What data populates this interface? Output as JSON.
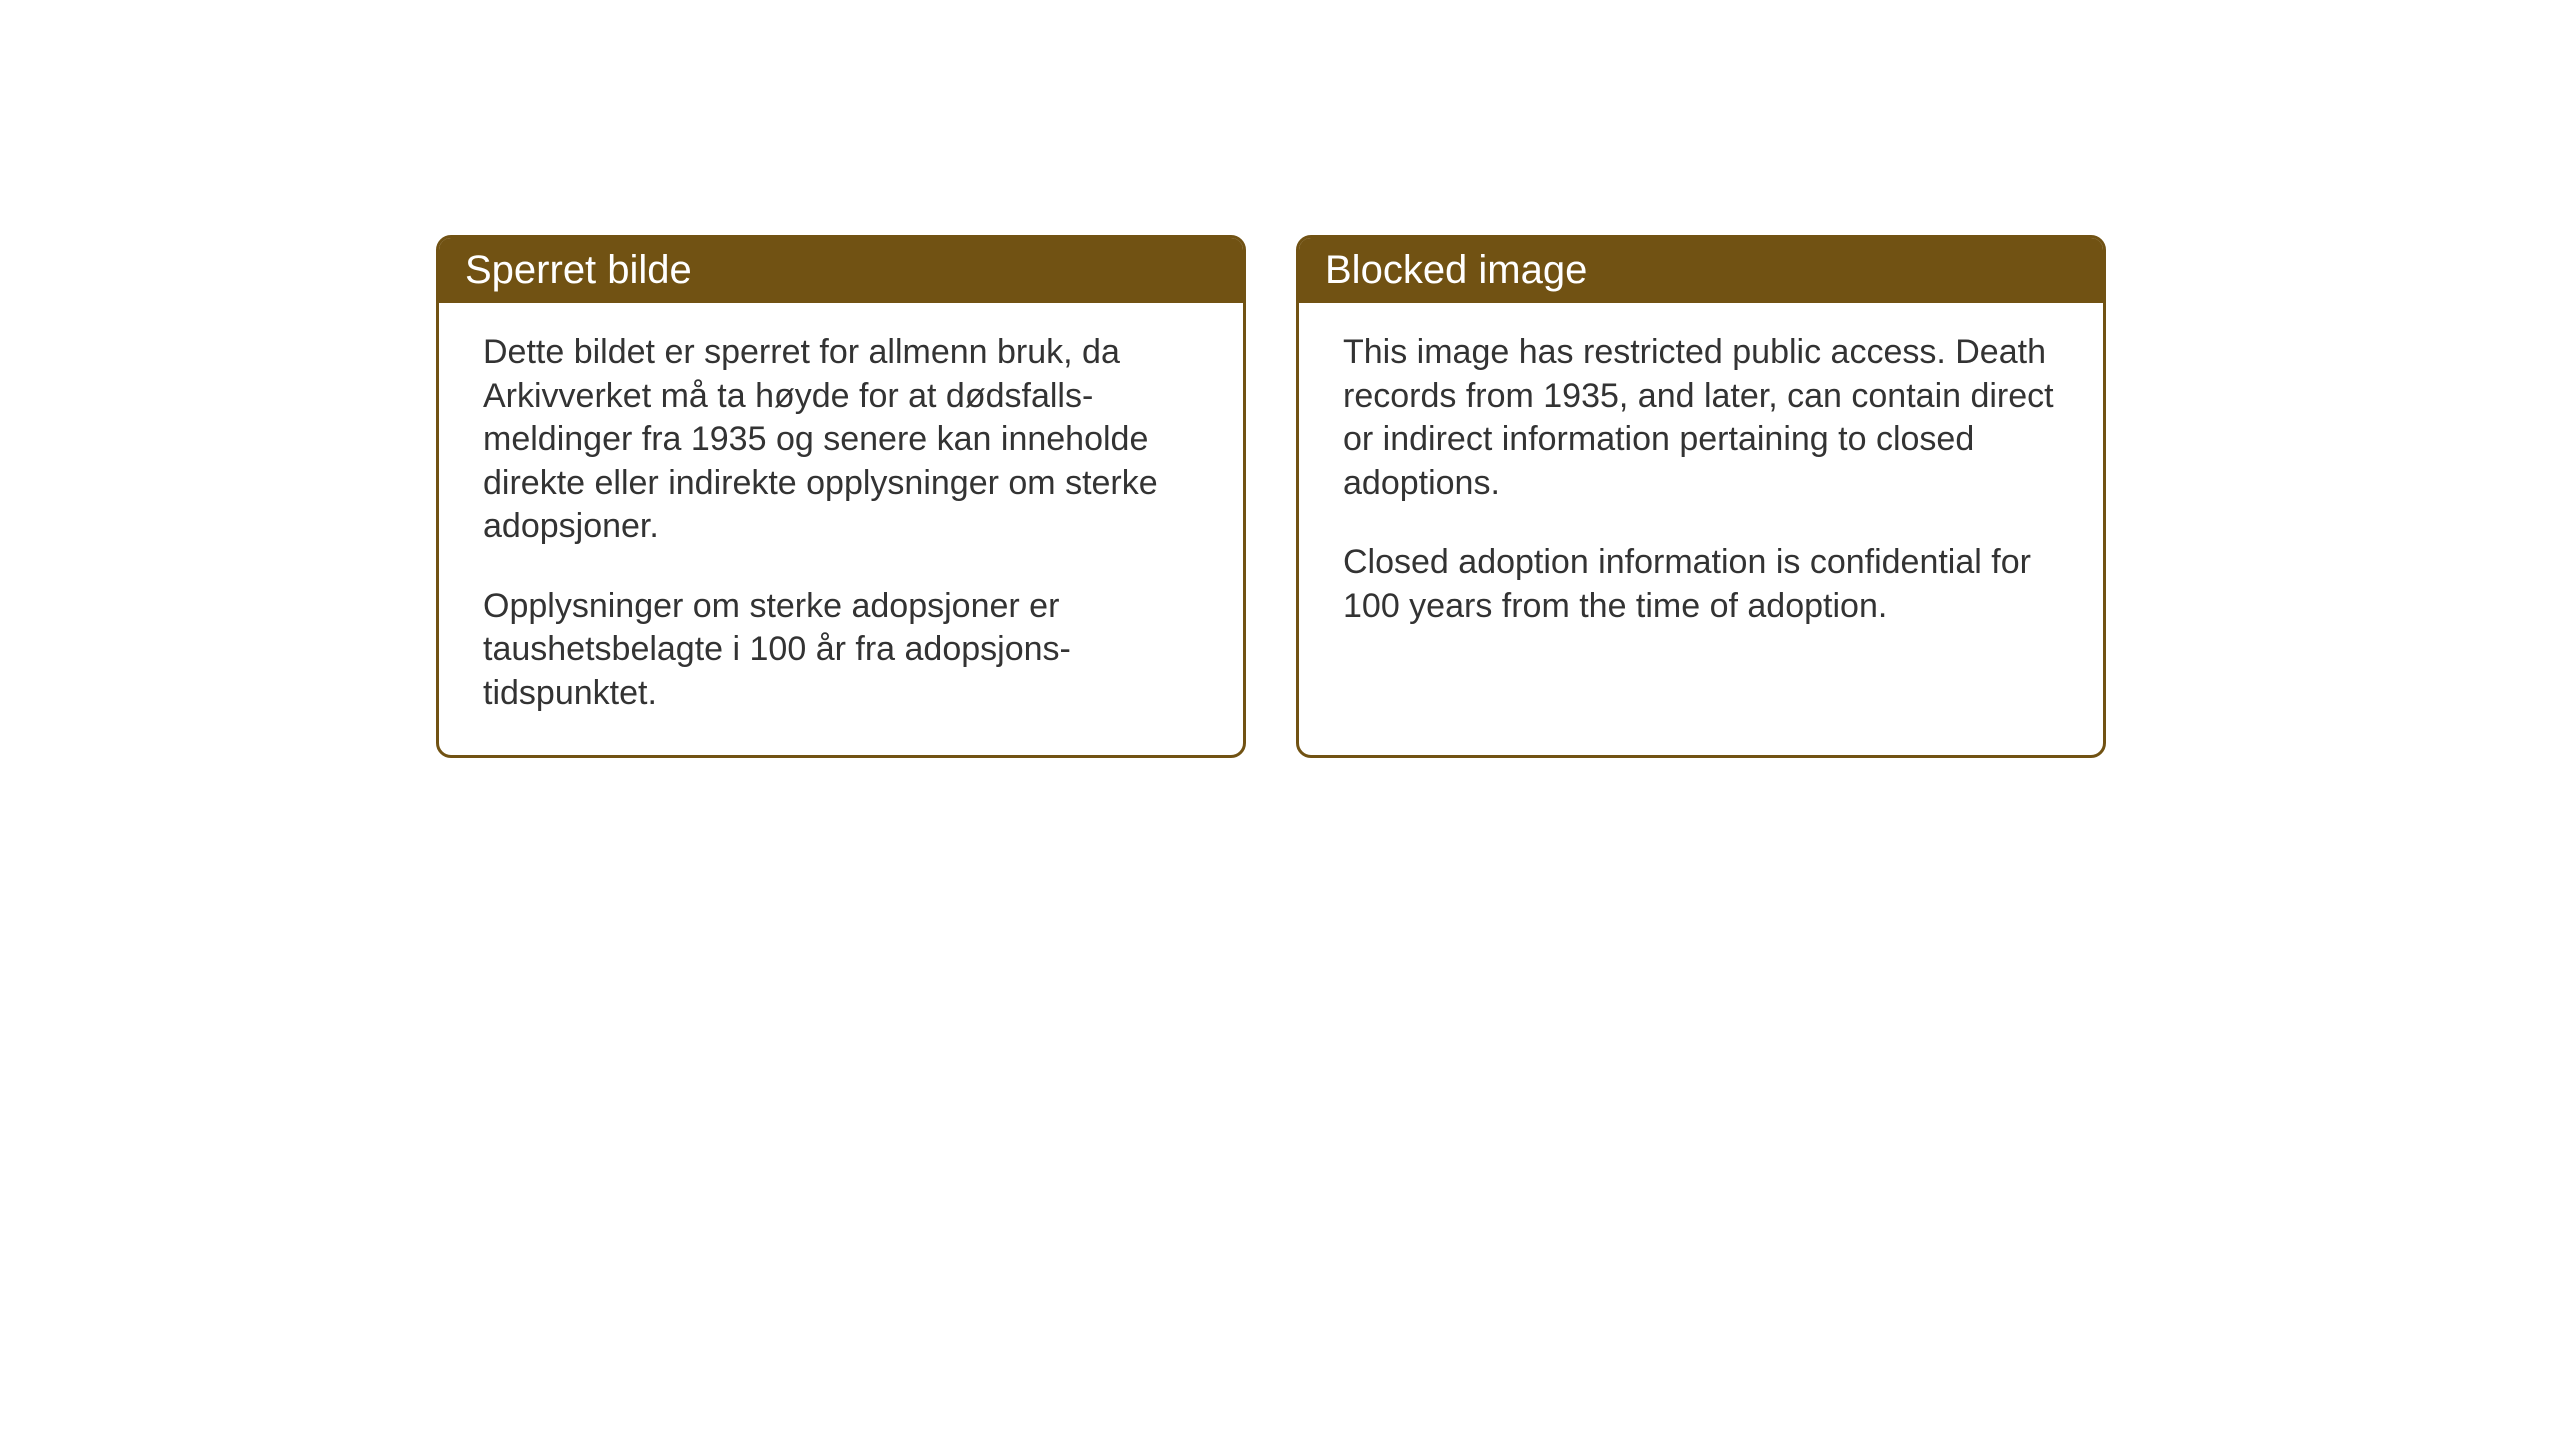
{
  "boxes": [
    {
      "title": "Sperret bilde",
      "paragraph1": "Dette bildet er sperret for allmenn bruk, da Arkivverket må ta høyde for at dødsfalls-meldinger fra 1935 og senere kan inneholde direkte eller indirekte opplysninger om sterke adopsjoner.",
      "paragraph2": "Opplysninger om sterke adopsjoner er taushetsbelagte i 100 år fra adopsjons-tidspunktet."
    },
    {
      "title": "Blocked image",
      "paragraph1": "This image has restricted public access. Death records from 1935, and later, can contain direct or indirect information pertaining to closed adoptions.",
      "paragraph2": "Closed adoption information is confidential for 100 years from the time of adoption."
    }
  ],
  "styling": {
    "header_background": "#715213",
    "header_text_color": "#ffffff",
    "border_color": "#715213",
    "body_text_color": "#333333",
    "body_background": "#ffffff",
    "title_fontsize": 40,
    "body_fontsize": 34,
    "border_radius": 15,
    "border_width": 3
  }
}
